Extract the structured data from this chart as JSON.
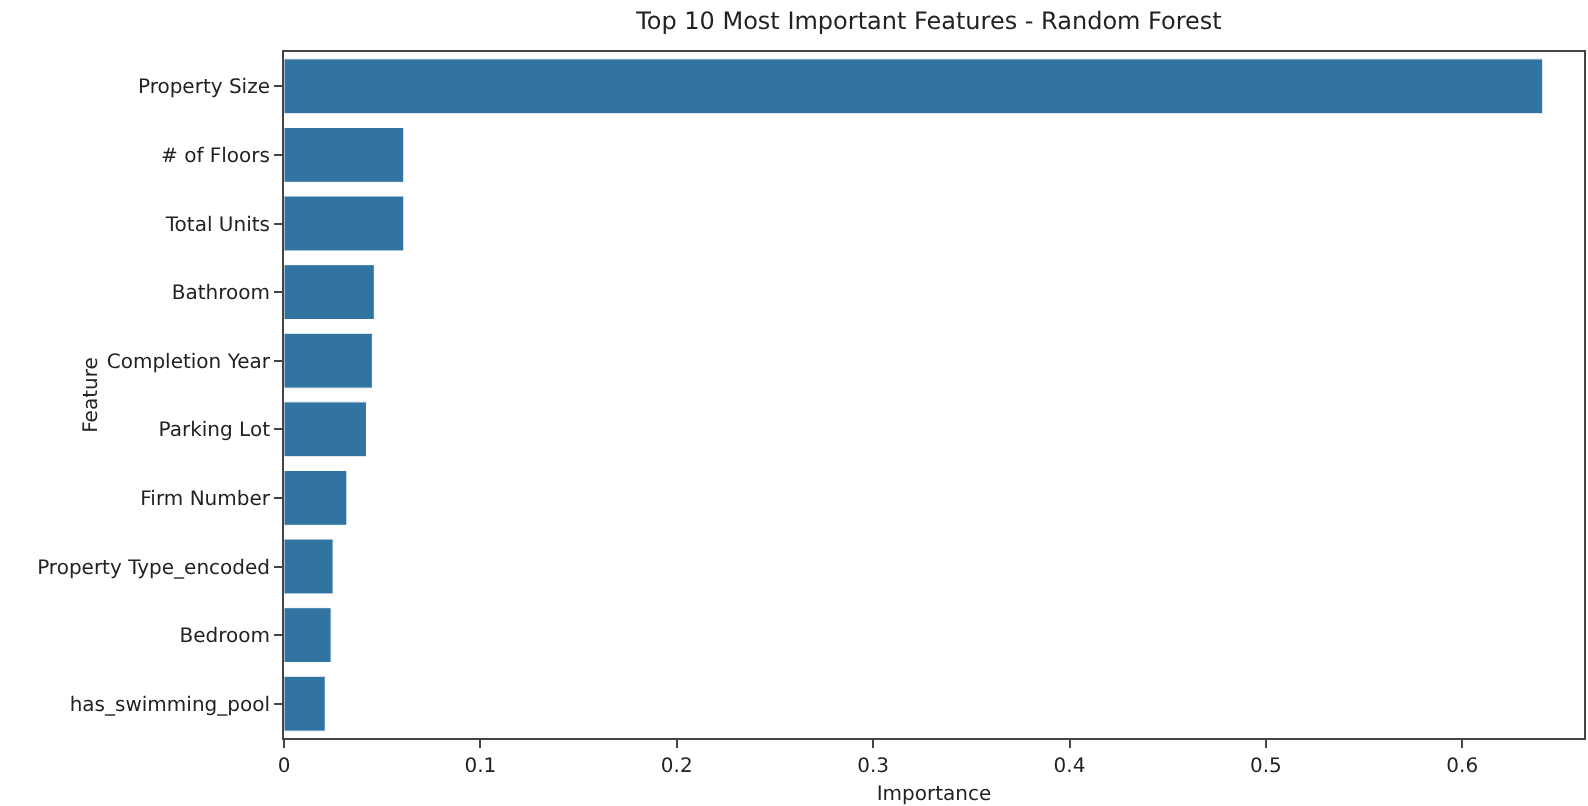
{
  "chart_data": {
    "type": "bar",
    "orientation": "horizontal",
    "title": "Top 10 Most Important Features - Random Forest",
    "xlabel": "Importance",
    "ylabel": "Feature",
    "categories": [
      "Property Size",
      "# of Floors",
      "Total Units",
      "Bathroom",
      "Completion Year",
      "Parking Lot",
      "Firm Number",
      "Property Type_encoded",
      "Bedroom",
      "has_swimming_pool"
    ],
    "values": [
      0.641,
      0.061,
      0.061,
      0.046,
      0.045,
      0.042,
      0.032,
      0.025,
      0.024,
      0.021
    ],
    "color": "#3274a1",
    "xlim": [
      0,
      0.662
    ],
    "xticks": [
      0,
      0.1,
      0.2,
      0.3,
      0.4,
      0.5,
      0.6
    ],
    "grid": false,
    "legend": false
  }
}
